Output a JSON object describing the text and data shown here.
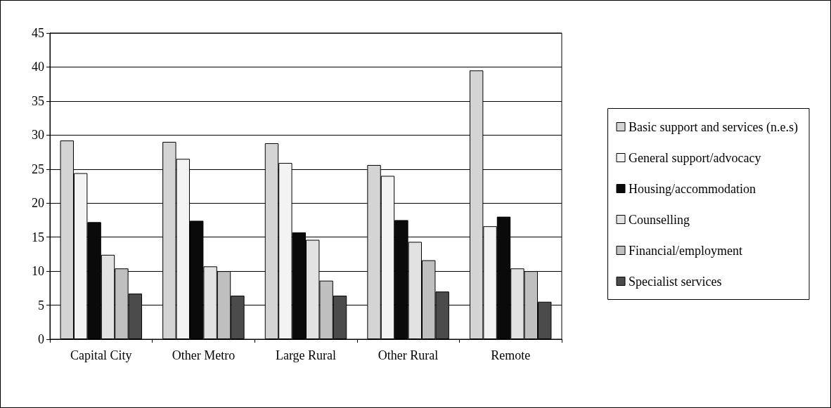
{
  "chart_data": {
    "type": "bar",
    "categories": [
      "Capital City",
      "Other Metro",
      "Large Rural",
      "Other Rural",
      "Remote"
    ],
    "series": [
      {
        "name": "Basic support and services (n.e.s)",
        "color": "#d4d4d4",
        "values": [
          29.2,
          29.0,
          28.8,
          25.6,
          39.5
        ]
      },
      {
        "name": "General support/advocacy",
        "color": "#f3f3f3",
        "values": [
          24.4,
          26.5,
          25.9,
          24.0,
          16.6
        ]
      },
      {
        "name": "Housing/accommodation",
        "color": "#0a0a0a",
        "values": [
          17.2,
          17.4,
          15.7,
          17.5,
          18.0
        ]
      },
      {
        "name": "Counselling",
        "color": "#e2e2e2",
        "values": [
          12.4,
          10.7,
          14.6,
          14.3,
          10.4
        ]
      },
      {
        "name": "Financial/employment",
        "color": "#bfbfbf",
        "values": [
          10.4,
          10.0,
          8.6,
          11.6,
          10.0
        ]
      },
      {
        "name": "Specialist services",
        "color": "#4b4b4b",
        "values": [
          6.7,
          6.4,
          6.4,
          7.0,
          5.5
        ]
      }
    ],
    "ylim": [
      0,
      45
    ],
    "yticks": [
      0,
      5,
      10,
      15,
      20,
      25,
      30,
      35,
      40,
      45
    ],
    "grid": "y",
    "legend": "right"
  }
}
